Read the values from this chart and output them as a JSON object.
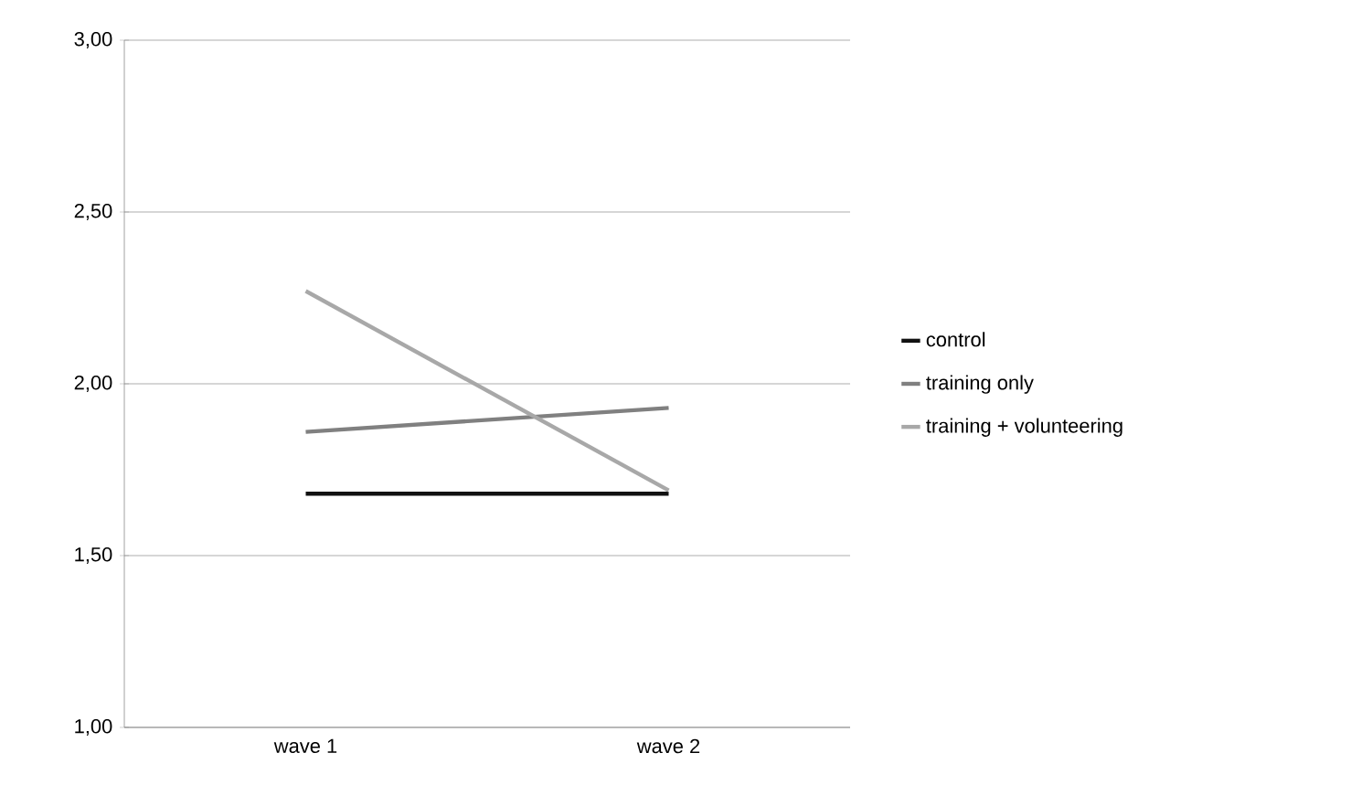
{
  "chart_data": {
    "type": "line",
    "categories": [
      "wave 1",
      "wave 2"
    ],
    "series": [
      {
        "name": "control",
        "color": "#111111",
        "values": [
          1.68,
          1.68
        ]
      },
      {
        "name": "training only",
        "color": "#808080",
        "values": [
          1.86,
          1.93
        ]
      },
      {
        "name": "training + volunteering",
        "color": "#a8a8a8",
        "values": [
          2.27,
          1.69
        ]
      }
    ],
    "ylim": [
      1,
      3
    ],
    "yticks": [
      {
        "value": 1,
        "label": "1,00"
      },
      {
        "value": 1.5,
        "label": "1,50"
      },
      {
        "value": 2,
        "label": "2,00"
      },
      {
        "value": 2.5,
        "label": "2,50"
      },
      {
        "value": 3,
        "label": "3,00"
      }
    ],
    "grid": "y",
    "legend": "right"
  }
}
